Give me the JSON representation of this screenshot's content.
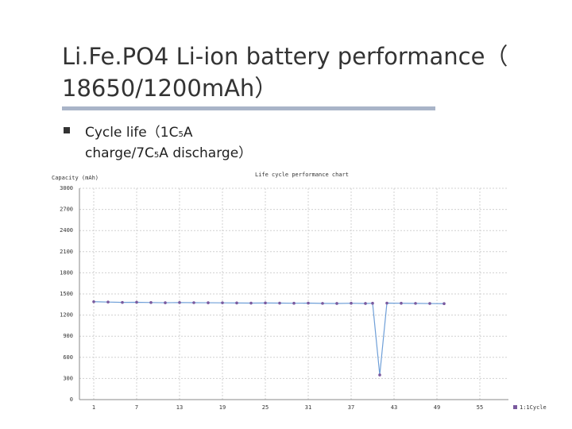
{
  "slide": {
    "title_lines": [
      "Li.Fe.PO4 Li-ion battery performance（",
      "18650/1200mAh）"
    ],
    "bullet_lines": [
      [
        {
          "text": "Cycle life（1C"
        },
        {
          "sub": "5"
        },
        {
          "text": "A"
        }
      ],
      [
        {
          "text": "charge/7C"
        },
        {
          "sub": "5"
        },
        {
          "text": "A discharge）"
        }
      ]
    ]
  },
  "chart_data": {
    "type": "line",
    "title": "Life cycle performance chart",
    "y_label": "Capacity (mAh)",
    "xlim": [
      -1,
      59
    ],
    "xticks": [
      1,
      7,
      13,
      19,
      25,
      31,
      37,
      43,
      49,
      55
    ],
    "ylim": [
      0,
      3000
    ],
    "yticks": [
      0,
      300,
      600,
      900,
      1200,
      1500,
      1800,
      2100,
      2400,
      2700,
      3000
    ],
    "grid": true,
    "legend": "bottom-right",
    "x": [
      1,
      3,
      5,
      7,
      9,
      11,
      13,
      15,
      17,
      19,
      21,
      23,
      25,
      27,
      29,
      31,
      33,
      35,
      37,
      39,
      40,
      41,
      42,
      44,
      46,
      48,
      50
    ],
    "series": [
      {
        "name": "1:1Cycle",
        "color": "#7a5a9e",
        "line_color": "#6f9fd8",
        "values": [
          1390,
          1385,
          1380,
          1382,
          1378,
          1375,
          1378,
          1376,
          1375,
          1374,
          1372,
          1370,
          1372,
          1370,
          1368,
          1370,
          1366,
          1365,
          1368,
          1365,
          1368,
          350,
          1370,
          1368,
          1366,
          1364,
          1362
        ]
      }
    ]
  }
}
